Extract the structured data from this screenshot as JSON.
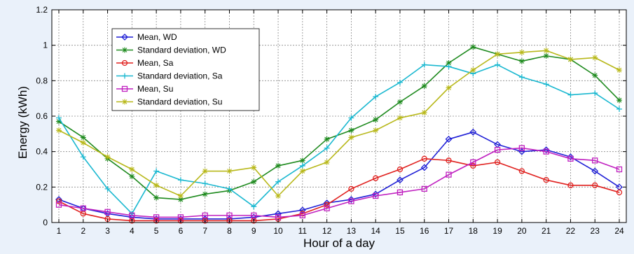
{
  "chart_data": {
    "type": "line",
    "xlabel": "Hour of a day",
    "ylabel": "Energy (kWh)",
    "xlim": [
      1,
      24
    ],
    "ylim": [
      0,
      1.2
    ],
    "xticks": [
      1,
      2,
      3,
      4,
      5,
      6,
      7,
      8,
      9,
      10,
      11,
      12,
      13,
      14,
      15,
      16,
      17,
      18,
      19,
      20,
      21,
      22,
      23,
      24
    ],
    "yticks": [
      0,
      0.2,
      0.4,
      0.6,
      0.8,
      1,
      1.2
    ],
    "ytick_labels": [
      "0",
      "0.2",
      "0.4",
      "0.6",
      "0.8",
      "1",
      "1.2"
    ],
    "grid": true,
    "legend_position": "top-left",
    "x": [
      1,
      2,
      3,
      4,
      5,
      6,
      7,
      8,
      9,
      10,
      11,
      12,
      13,
      14,
      15,
      16,
      17,
      18,
      19,
      20,
      21,
      22,
      23,
      24
    ],
    "series": [
      {
        "name": "Mean, WD",
        "color": "#1f1fd6",
        "marker": "diamond",
        "values": [
          0.13,
          0.08,
          0.05,
          0.03,
          0.02,
          0.02,
          0.02,
          0.02,
          0.03,
          0.05,
          0.07,
          0.11,
          0.13,
          0.16,
          0.24,
          0.31,
          0.47,
          0.51,
          0.44,
          0.4,
          0.41,
          0.37,
          0.29,
          0.2
        ]
      },
      {
        "name": "Standard deviation, WD",
        "color": "#1e8a1e",
        "marker": "star",
        "values": [
          0.57,
          0.48,
          0.36,
          0.26,
          0.14,
          0.13,
          0.16,
          0.18,
          0.23,
          0.32,
          0.35,
          0.47,
          0.52,
          0.58,
          0.68,
          0.77,
          0.9,
          0.99,
          0.95,
          0.91,
          0.94,
          0.92,
          0.83,
          0.69
        ]
      },
      {
        "name": "Mean, Sa",
        "color": "#e0201e",
        "marker": "circle",
        "values": [
          0.12,
          0.05,
          0.02,
          0.01,
          0.01,
          0.01,
          0.01,
          0.01,
          0.01,
          0.02,
          0.05,
          0.1,
          0.19,
          0.25,
          0.3,
          0.36,
          0.35,
          0.32,
          0.34,
          0.29,
          0.24,
          0.21,
          0.21,
          0.17
        ]
      },
      {
        "name": "Standard deviation, Sa",
        "color": "#1ab8d0",
        "marker": "plus",
        "values": [
          0.59,
          0.37,
          0.19,
          0.05,
          0.29,
          0.24,
          0.22,
          0.19,
          0.09,
          0.23,
          0.32,
          0.42,
          0.59,
          0.71,
          0.79,
          0.89,
          0.88,
          0.84,
          0.89,
          0.82,
          0.78,
          0.72,
          0.73,
          0.64
        ]
      },
      {
        "name": "Mean, Su",
        "color": "#c020c0",
        "marker": "square",
        "values": [
          0.1,
          0.08,
          0.06,
          0.04,
          0.03,
          0.03,
          0.04,
          0.04,
          0.04,
          0.03,
          0.04,
          0.08,
          0.12,
          0.15,
          0.17,
          0.19,
          0.27,
          0.34,
          0.41,
          0.42,
          0.4,
          0.36,
          0.35,
          0.3
        ]
      },
      {
        "name": "Standard deviation, Su",
        "color": "#b8b81a",
        "marker": "star",
        "values": [
          0.52,
          0.45,
          0.37,
          0.3,
          0.21,
          0.15,
          0.29,
          0.29,
          0.31,
          0.15,
          0.29,
          0.34,
          0.48,
          0.52,
          0.59,
          0.62,
          0.76,
          0.86,
          0.95,
          0.96,
          0.97,
          0.92,
          0.93,
          0.86
        ]
      }
    ]
  }
}
